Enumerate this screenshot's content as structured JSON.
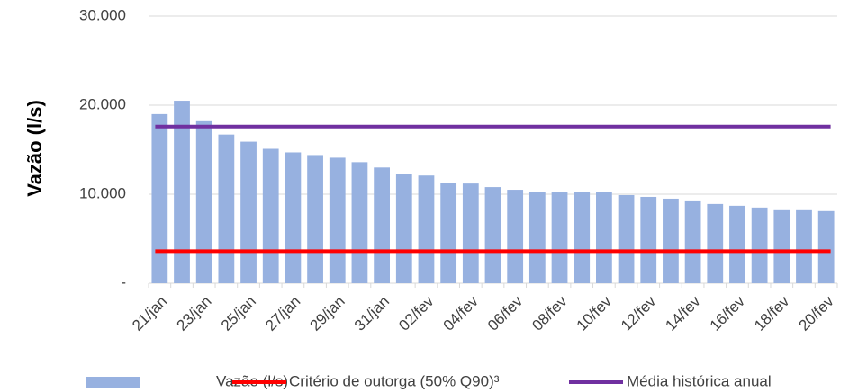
{
  "chart_data": {
    "type": "bar",
    "y_label": "Vazão (l/s)",
    "categories": [
      "21/jan",
      null,
      "23/jan",
      null,
      "25/jan",
      null,
      "27/jan",
      null,
      "29/jan",
      null,
      "31/jan",
      null,
      "02/fev",
      null,
      "04/fev",
      null,
      "06/fev",
      null,
      "08/fev",
      null,
      "10/fev",
      null,
      "12/fev",
      null,
      "14/fev",
      null,
      "16/fev",
      null,
      "18/fev",
      null,
      "20/fev"
    ],
    "series": [
      {
        "name": "Vazão (l/s)",
        "type": "bar",
        "color": "#97b1e0",
        "values": [
          19000,
          20500,
          18200,
          16700,
          15900,
          15100,
          14700,
          14400,
          14100,
          13600,
          13000,
          12300,
          12100,
          11300,
          11200,
          10800,
          10500,
          10300,
          10200,
          10300,
          10300,
          9900,
          9700,
          9500,
          9200,
          8900,
          8700,
          8500,
          8200,
          8200,
          8100
        ]
      },
      {
        "name": "Critério de outorga (50% Q90)³",
        "type": "line",
        "color": "#ff0000",
        "values": [
          3600,
          3600,
          3600,
          3600,
          3600,
          3600,
          3600,
          3600,
          3600,
          3600,
          3600,
          3600,
          3600,
          3600,
          3600,
          3600,
          3600,
          3600,
          3600,
          3600,
          3600,
          3600,
          3600,
          3600,
          3600,
          3600,
          3600,
          3600,
          3600,
          3600,
          3600
        ]
      },
      {
        "name": "Média histórica anual",
        "type": "line",
        "color": "#7030a0",
        "values": [
          17600,
          17600,
          17600,
          17600,
          17600,
          17600,
          17600,
          17600,
          17600,
          17600,
          17600,
          17600,
          17600,
          17600,
          17600,
          17600,
          17600,
          17600,
          17600,
          17600,
          17600,
          17600,
          17600,
          17600,
          17600,
          17600,
          17600,
          17600,
          17600,
          17600,
          17600
        ]
      }
    ],
    "ylim": [
      0,
      30000
    ],
    "yticks": [
      {
        "value": 0,
        "label": "-"
      },
      {
        "value": 10000,
        "label": "10.000"
      },
      {
        "value": 20000,
        "label": "20.000"
      },
      {
        "value": 30000,
        "label": "30.000"
      }
    ],
    "grid": true
  }
}
